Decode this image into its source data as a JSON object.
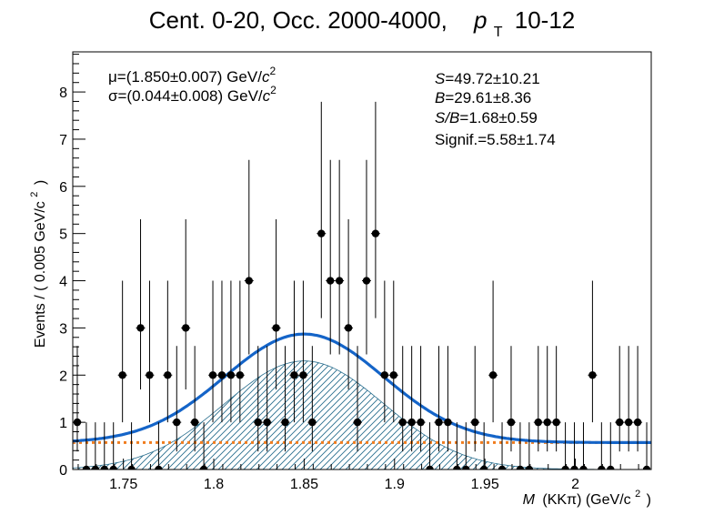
{
  "chart_data": {
    "type": "scatter",
    "title_parts": {
      "prefix": "Cent. 0-20, Occ. 2000-4000,",
      "pt_symbol": "p",
      "pt_sub": "T",
      "pt_range": "10-12"
    },
    "ylabel": {
      "text": "Events / ( 0.005 GeV/c",
      "sup": "2",
      "close": ")"
    },
    "xlabel": {
      "italic": "M",
      "text": "(KKπ) (GeV/c",
      "sup": "2",
      "close": ")"
    },
    "xlim": [
      1.722,
      2.042
    ],
    "ylim": [
      0,
      8.85
    ],
    "x_ticks": [
      1.75,
      1.8,
      1.85,
      1.9,
      1.95,
      2.0
    ],
    "x_tick_labels": [
      "1.75",
      "1.8",
      "1.85",
      "1.9",
      "1.95",
      "2"
    ],
    "y_ticks": [
      0,
      1,
      2,
      3,
      4,
      5,
      6,
      7,
      8
    ],
    "y_tick_labels": [
      "0",
      "1",
      "2",
      "3",
      "4",
      "5",
      "6",
      "7",
      "8"
    ],
    "bin_width": 0.005,
    "points": {
      "x": [
        1.7245,
        1.7295,
        1.7345,
        1.7395,
        1.7445,
        1.7495,
        1.7545,
        1.7595,
        1.7645,
        1.7695,
        1.7745,
        1.7795,
        1.7845,
        1.7895,
        1.7945,
        1.7995,
        1.8045,
        1.8095,
        1.8145,
        1.8195,
        1.8245,
        1.8295,
        1.8345,
        1.8395,
        1.8445,
        1.8495,
        1.8545,
        1.8595,
        1.8645,
        1.8695,
        1.8745,
        1.8795,
        1.8845,
        1.8895,
        1.8945,
        1.8995,
        1.9045,
        1.9095,
        1.9145,
        1.9195,
        1.9245,
        1.9295,
        1.9345,
        1.9395,
        1.9445,
        1.9495,
        1.9545,
        1.9595,
        1.9645,
        1.9695,
        1.9745,
        1.9795,
        1.9845,
        1.9895,
        1.9945,
        1.9995,
        2.0045,
        2.0095,
        2.0145,
        2.0195,
        2.0245,
        2.0295,
        2.0345,
        2.0395
      ],
      "y": [
        1,
        0,
        0,
        0,
        0,
        2,
        0,
        3,
        2,
        0,
        2,
        1,
        3,
        1,
        0,
        2,
        2,
        2,
        2,
        4,
        1,
        1,
        3,
        1,
        2,
        2,
        1,
        5,
        4,
        4,
        3,
        1,
        4,
        5,
        2,
        2,
        1,
        1,
        1,
        0,
        1,
        1,
        0,
        0,
        1,
        0,
        2,
        0,
        1,
        0,
        0,
        1,
        1,
        1,
        0,
        0,
        0,
        2,
        0,
        0,
        1,
        1,
        1,
        0
      ]
    },
    "fit": {
      "mu": 1.85,
      "sigma": 0.044,
      "signal_peak": 2.3,
      "background_level": 0.57
    },
    "series": [
      {
        "name": "",
        "role": "total-fit",
        "color": "#1464c8"
      },
      {
        "name": "",
        "role": "signal-hatched",
        "color": "#2a6f8f"
      },
      {
        "name": "",
        "role": "background",
        "color": "#f07d1e"
      }
    ],
    "annotations": {
      "mu": {
        "symbol": "μ",
        "value": "=(1.850±0.007) GeV/",
        "c": "c",
        "sup": "2"
      },
      "sigma": {
        "symbol": "σ",
        "value": "=(0.044±0.008) GeV/",
        "c": "c",
        "sup": "2"
      },
      "S": {
        "label": "S",
        "value": "=49.72±10.21"
      },
      "B": {
        "label": "B",
        "value": "=29.61±8.36"
      },
      "SB": {
        "label": "S/B",
        "value": "=1.68±0.59"
      },
      "signif": {
        "label": "Signif.",
        "value": "=5.58±1.74"
      }
    },
    "grid": false,
    "legend": "none"
  }
}
